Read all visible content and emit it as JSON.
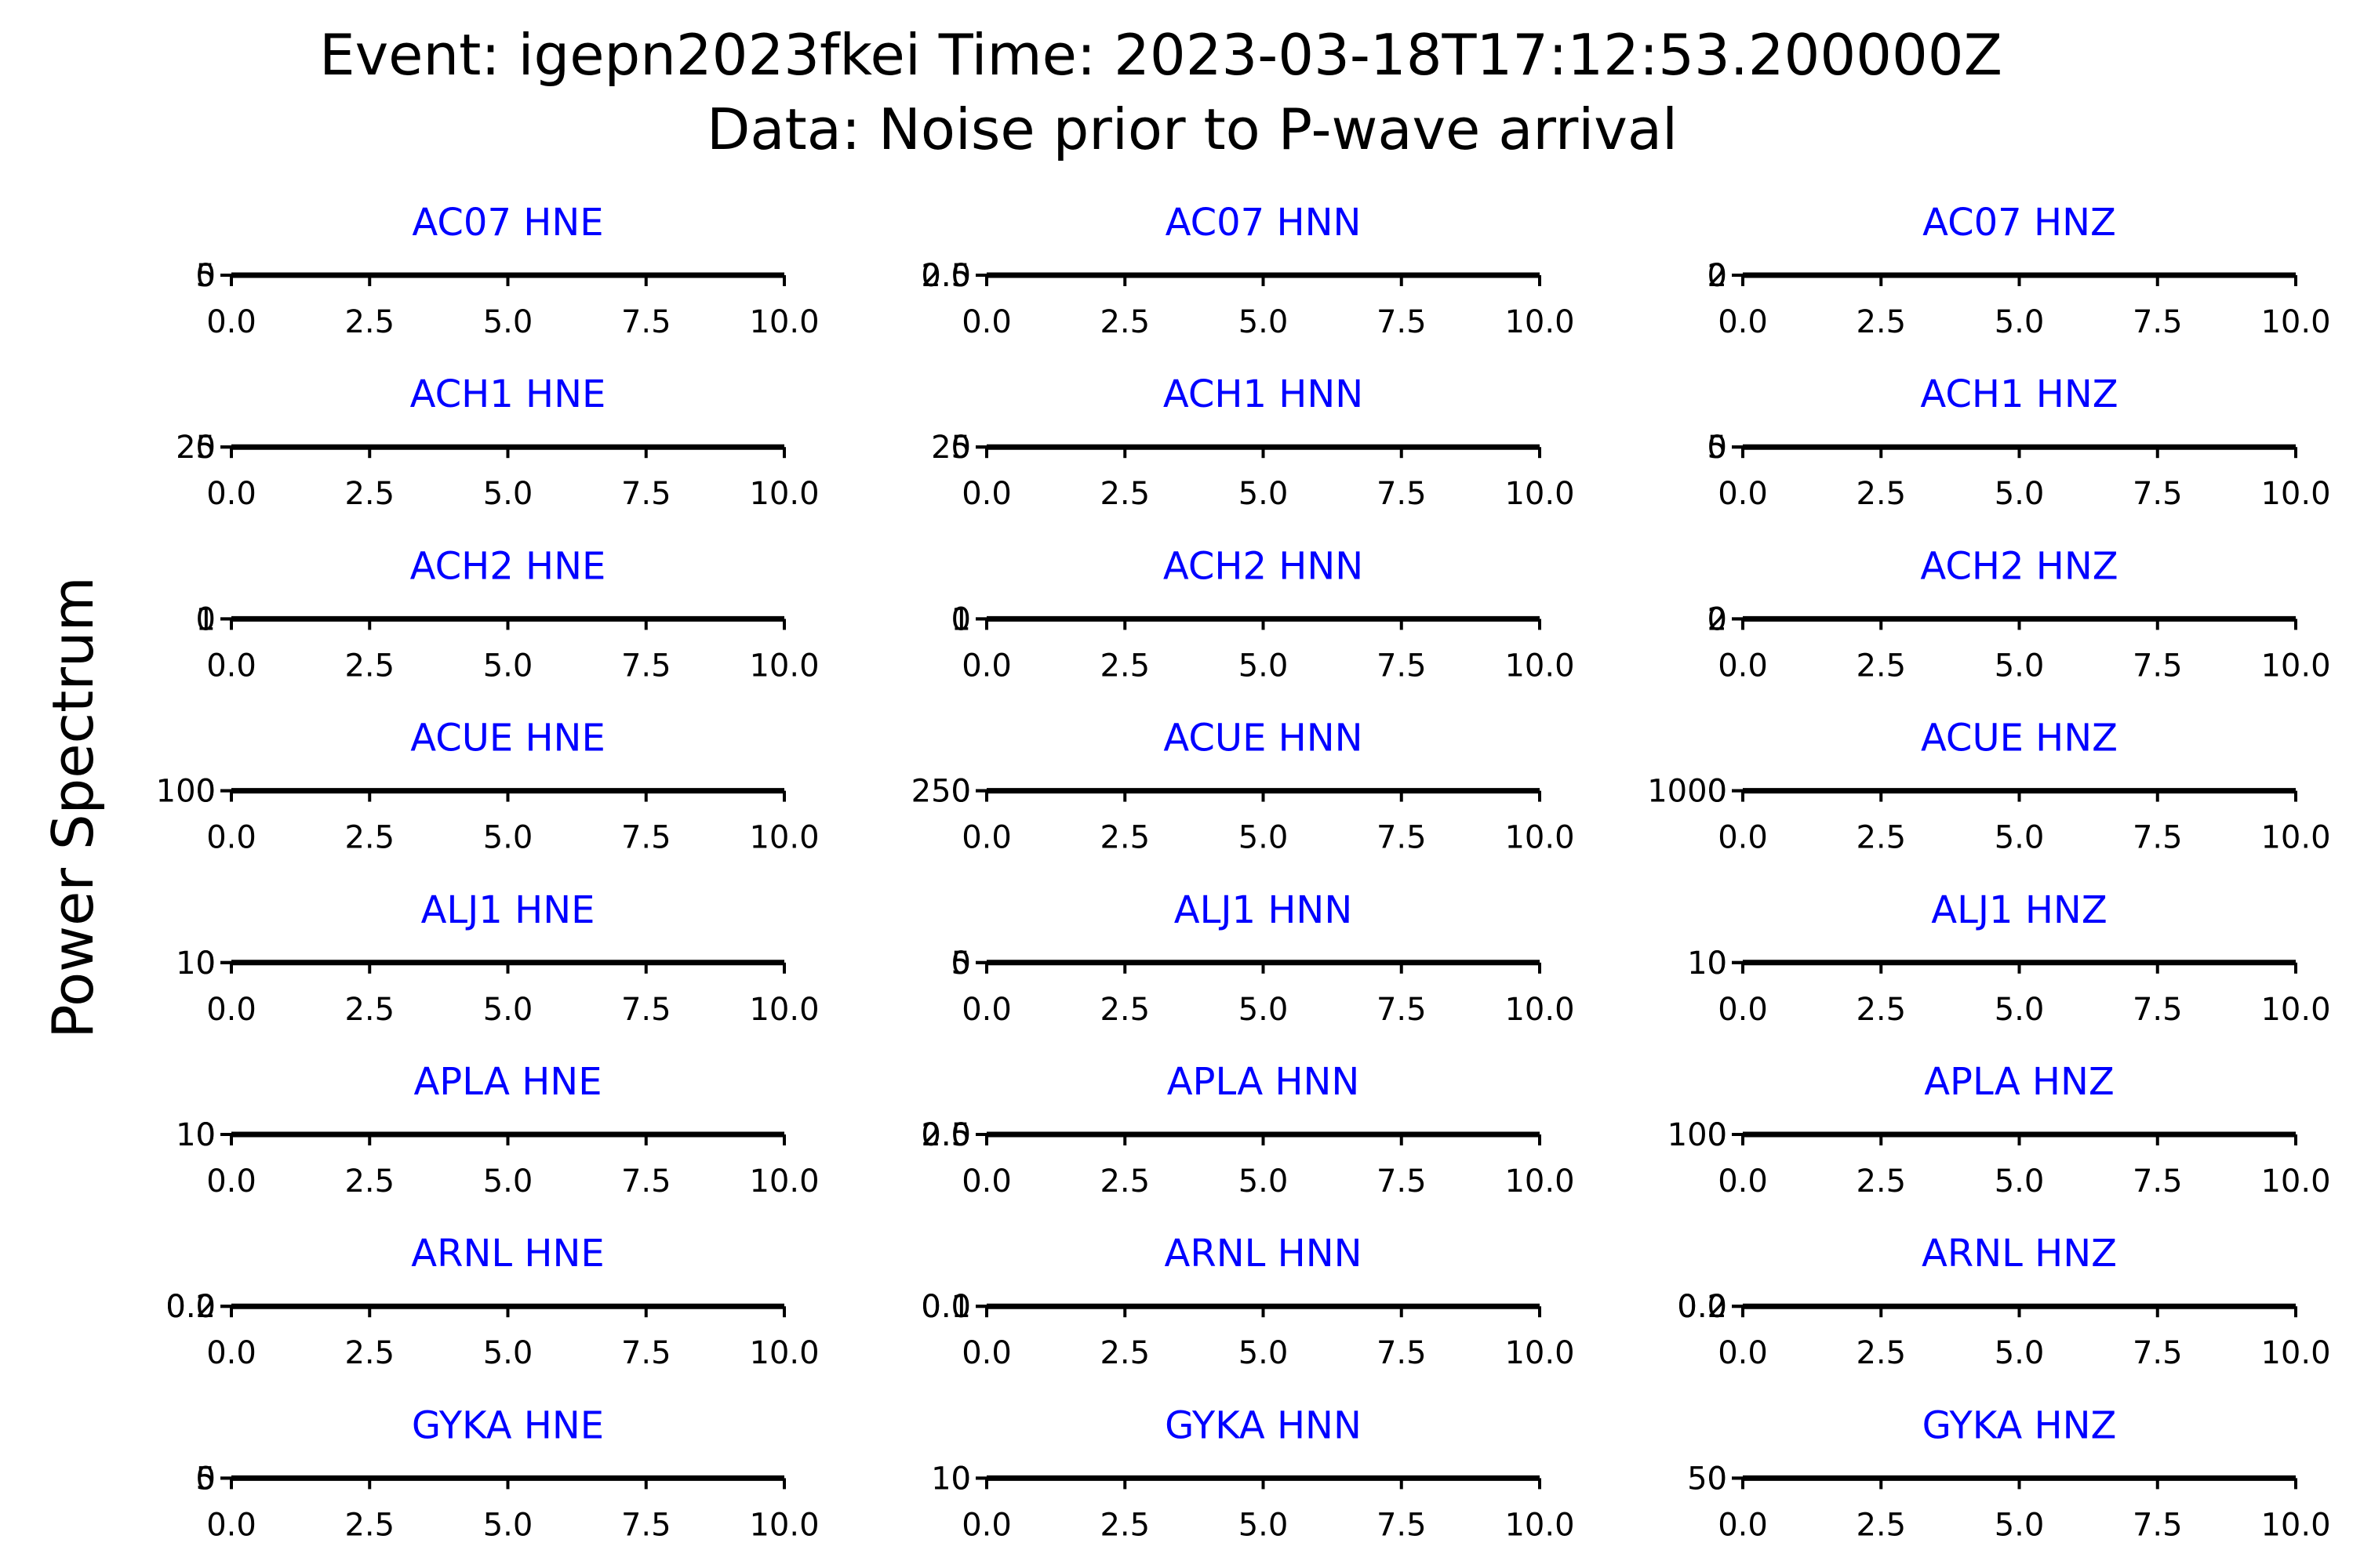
{
  "title_line1": "Event: igepn2023fkei Time: 2023-03-18T17:12:53.200000Z",
  "title_line2": "Data: Noise prior to P-wave arrival",
  "ylabel": "Power Spectrum",
  "colors": {
    "panel_title": "#0000ff",
    "axis": "#000000",
    "trace": "#000000"
  },
  "chart_data": {
    "type": "line",
    "title": "Event: igepn2023fkei Time: 2023-03-18T17:12:53.200000Z\nData: Noise prior to P-wave arrival",
    "ylabel": "Power Spectrum",
    "xlim": [
      0,
      10
    ],
    "x_ticks": [
      "0.0",
      "2.5",
      "5.0",
      "7.5",
      "10.0"
    ],
    "grid": false,
    "rows": 8,
    "cols": 3,
    "panels": [
      {
        "title": "AC07 HNE",
        "y_ticks": [
          "0",
          "5"
        ],
        "x": [
          0,
          10
        ],
        "y": [
          0,
          0
        ]
      },
      {
        "title": "AC07 HNN",
        "y_ticks": [
          "0.0",
          "2.5"
        ],
        "x": [
          0,
          10
        ],
        "y": [
          0,
          0
        ]
      },
      {
        "title": "AC07 HNZ",
        "y_ticks": [
          "0",
          "2"
        ],
        "x": [
          0,
          10
        ],
        "y": [
          0,
          0
        ]
      },
      {
        "title": "ACH1 HNE",
        "y_ticks": [
          "0",
          "25"
        ],
        "x": [
          0,
          10
        ],
        "y": [
          0,
          0
        ]
      },
      {
        "title": "ACH1 HNN",
        "y_ticks": [
          "0",
          "25"
        ],
        "x": [
          0,
          10
        ],
        "y": [
          0,
          0
        ]
      },
      {
        "title": "ACH1 HNZ",
        "y_ticks": [
          "0",
          "5"
        ],
        "x": [
          0,
          10
        ],
        "y": [
          0,
          0
        ]
      },
      {
        "title": "ACH2 HNE",
        "y_ticks": [
          "0",
          "1"
        ],
        "x": [
          0,
          10
        ],
        "y": [
          0,
          0
        ]
      },
      {
        "title": "ACH2 HNN",
        "y_ticks": [
          "0",
          "1"
        ],
        "x": [
          0,
          10
        ],
        "y": [
          0,
          0
        ]
      },
      {
        "title": "ACH2 HNZ",
        "y_ticks": [
          "0",
          "2"
        ],
        "x": [
          0,
          10
        ],
        "y": [
          0,
          0
        ]
      },
      {
        "title": "ACUE HNE",
        "y_ticks": [
          "0",
          "100"
        ],
        "x": [
          0,
          10
        ],
        "y": [
          0,
          0
        ]
      },
      {
        "title": "ACUE HNN",
        "y_ticks": [
          "0",
          "250"
        ],
        "x": [
          0,
          10
        ],
        "y": [
          0,
          0
        ]
      },
      {
        "title": "ACUE HNZ",
        "y_ticks": [
          "0",
          "1000"
        ],
        "x": [
          0,
          10
        ],
        "y": [
          0,
          0
        ]
      },
      {
        "title": "ALJ1 HNE",
        "y_ticks": [
          "0",
          "10"
        ],
        "x": [
          0,
          10
        ],
        "y": [
          0,
          0
        ]
      },
      {
        "title": "ALJ1 HNN",
        "y_ticks": [
          "0",
          "5"
        ],
        "x": [
          0,
          10
        ],
        "y": [
          0,
          0
        ]
      },
      {
        "title": "ALJ1 HNZ",
        "y_ticks": [
          "0",
          "10"
        ],
        "x": [
          0,
          10
        ],
        "y": [
          0,
          0
        ]
      },
      {
        "title": "APLA HNE",
        "y_ticks": [
          "0",
          "10"
        ],
        "x": [
          0,
          10
        ],
        "y": [
          0,
          0
        ]
      },
      {
        "title": "APLA HNN",
        "y_ticks": [
          "0.0",
          "2.5"
        ],
        "x": [
          0,
          10
        ],
        "y": [
          0,
          0
        ]
      },
      {
        "title": "APLA HNZ",
        "y_ticks": [
          "0",
          "100"
        ],
        "x": [
          0,
          10
        ],
        "y": [
          0,
          0
        ]
      },
      {
        "title": "ARNL HNE",
        "y_ticks": [
          "0.0",
          "0.2"
        ],
        "x": [
          0,
          10
        ],
        "y": [
          0,
          0
        ]
      },
      {
        "title": "ARNL HNN",
        "y_ticks": [
          "0.0",
          "0.1"
        ],
        "x": [
          0,
          10
        ],
        "y": [
          0,
          0
        ]
      },
      {
        "title": "ARNL HNZ",
        "y_ticks": [
          "0.0",
          "0.2"
        ],
        "x": [
          0,
          10
        ],
        "y": [
          0,
          0
        ]
      },
      {
        "title": "GYKA HNE",
        "y_ticks": [
          "0",
          "5"
        ],
        "x": [
          0,
          10
        ],
        "y": [
          0,
          0
        ]
      },
      {
        "title": "GYKA HNN",
        "y_ticks": [
          "0",
          "10"
        ],
        "x": [
          0,
          10
        ],
        "y": [
          0,
          0
        ]
      },
      {
        "title": "GYKA HNZ",
        "y_ticks": [
          "0",
          "50"
        ],
        "x": [
          0,
          10
        ],
        "y": [
          0,
          0
        ]
      }
    ]
  }
}
